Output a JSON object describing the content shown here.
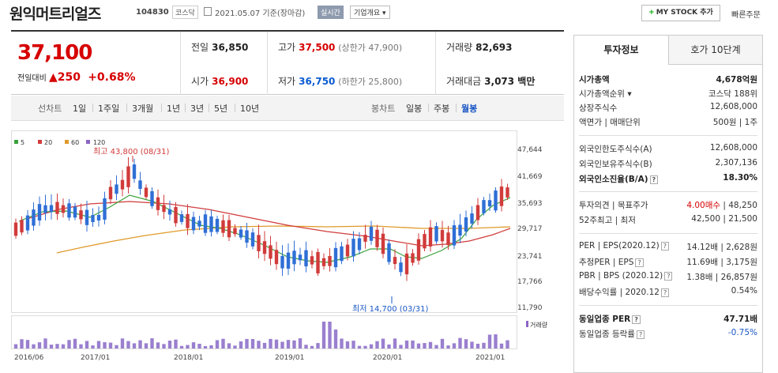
{
  "header": {
    "title": "원익머트리얼즈",
    "code": "104830",
    "market": "코스닥",
    "date": "2021.05.07 기준(장마감)",
    "realtime": "실시간",
    "company_info": "기업개요",
    "mystock": "MY STOCK 추가",
    "quick_order": "빠른주문"
  },
  "price": {
    "current": "37,100",
    "change_label": "전일대비",
    "change": "250",
    "change_rate": "+0.68%",
    "prev_label": "전일",
    "prev": "36,850",
    "open_label": "시가",
    "open": "36,900",
    "high_label": "고가",
    "high": "37,500",
    "upper_limit": "(상한가 47,900)",
    "low_label": "저가",
    "low": "36,750",
    "lower_limit": "(하한가 25,800)",
    "volume_label": "거래량",
    "volume": "82,693",
    "amount_label": "거래대금",
    "amount": "3,073 백만"
  },
  "chart_tabs": {
    "line_head": "선차트",
    "periods": [
      "1일",
      "1주일",
      "3개월",
      "1년",
      "3년",
      "5년",
      "10년"
    ],
    "candle_head": "봉차트",
    "candles": [
      "일봉",
      "주봉",
      "월봉"
    ]
  },
  "chart_data": {
    "type": "candlestick",
    "legend": [
      "5",
      "20",
      "60",
      "120"
    ],
    "legend_colors": [
      "#3aa23a",
      "#d13b3b",
      "#e09a2a",
      "#8d63c6"
    ],
    "y_ticks": [
      "47,644",
      "41,669",
      "35,693",
      "29,717",
      "23,741",
      "17,766",
      "11,790"
    ],
    "x_ticks": [
      "2016/06",
      "2017/01",
      "2018/01",
      "2019/01",
      "2020/01",
      "2021/01"
    ],
    "max_annotation": "최고 43,800 (08/31)",
    "min_annotation": "최저 14,700 (03/31)",
    "volume_label": "거래량"
  },
  "info_tabs": [
    "투자정보",
    "호가 10단계"
  ],
  "info": {
    "market_cap_label": "시가총액",
    "market_cap": "4,678억원",
    "rank_label": "시가총액순위",
    "rank": "코스닥 188위",
    "shares_label": "상장주식수",
    "shares": "12,608,000",
    "par_label": "액면가 | 매매단위",
    "par": "500원 | 1주",
    "foreign_limit_label": "외국인한도주식수(A)",
    "foreign_limit": "12,608,000",
    "foreign_hold_label": "외국인보유주식수(B)",
    "foreign_hold": "2,307,136",
    "foreign_ratio_label": "외국인소진율(B/A)",
    "foreign_ratio": "18.30%",
    "opinion_label": "투자의견 | 목표주가",
    "opinion": "4.00매수",
    "target": "48,250",
    "week52_label": "52주최고 | 최저",
    "week52": "42,500 | 21,500",
    "per_label": "PER | EPS(2020.12)",
    "per": "14.12배 | 2,628원",
    "est_per_label": "추정PER | EPS",
    "est_per": "11.69배 | 3,175원",
    "pbr_label": "PBR | BPS (2020.12)",
    "pbr": "1.38배 | 26,857원",
    "dividend_label": "배당수익률 | 2020.12",
    "dividend": "0.54%",
    "industry_per_label": "동일업종 PER",
    "industry_per": "47.71배",
    "industry_rate_label": "동일업종 등락률",
    "industry_rate": "-0.75%"
  }
}
